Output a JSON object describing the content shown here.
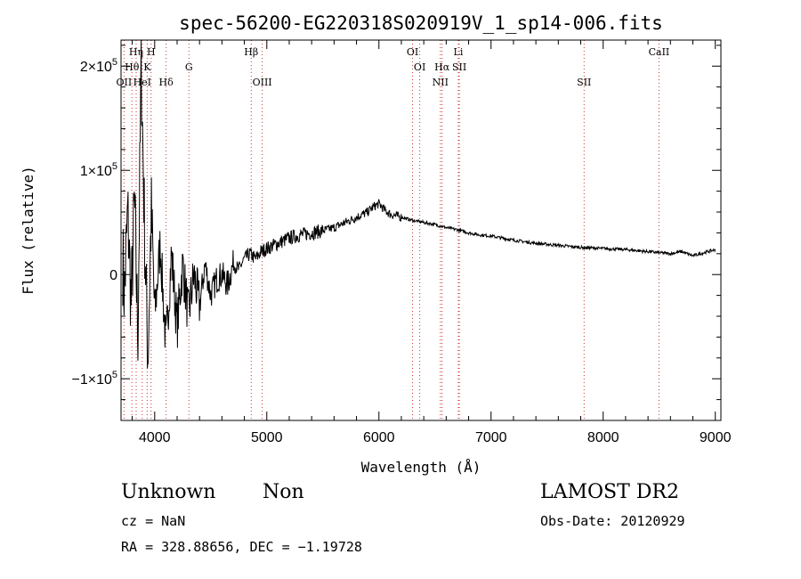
{
  "chart_data": {
    "type": "line",
    "title": "spec-56200-EG220318S020919V_1_sp14-006.fits",
    "xlabel": "Wavelength (Å)",
    "ylabel": "Flux (relative)",
    "xlim": [
      3700,
      9050
    ],
    "ylim": [
      -140000,
      225000
    ],
    "grid": false,
    "x_ticks": [
      {
        "value": 4000,
        "label": "4000"
      },
      {
        "value": 5000,
        "label": "5000"
      },
      {
        "value": 6000,
        "label": "6000"
      },
      {
        "value": 7000,
        "label": "7000"
      },
      {
        "value": 8000,
        "label": "8000"
      },
      {
        "value": 9000,
        "label": "9000"
      }
    ],
    "y_ticks": [
      {
        "value": 200000,
        "mant": "2×10",
        "exp": "5"
      },
      {
        "value": 100000,
        "mant": "1×10",
        "exp": "5"
      },
      {
        "value": 0,
        "mant": "0",
        "exp": ""
      },
      {
        "value": -100000,
        "mant": "−1×10",
        "exp": "5"
      }
    ],
    "series": [
      {
        "x": [
          3700,
          3730,
          3760,
          3790,
          3820,
          3850,
          3880,
          3910,
          3940,
          3970,
          4000,
          4050,
          4100,
          4150,
          4200,
          4250,
          4300,
          4350,
          4400,
          4450,
          4500,
          4550,
          4600,
          4650,
          4700,
          4750,
          4800,
          4850,
          4900,
          4950,
          5000,
          5100,
          5200,
          5300,
          5400,
          5500,
          5600,
          5700,
          5800,
          5900,
          5950,
          6000,
          6050,
          6100,
          6200,
          6300,
          6400,
          6500,
          6600,
          6700,
          6800,
          6900,
          7000,
          7200,
          7400,
          7600,
          7800,
          8000,
          8200,
          8400,
          8600,
          8700,
          8800,
          8900,
          9000
        ],
        "y": [
          50000,
          -20000,
          60000,
          -30000,
          70000,
          -60000,
          200000,
          40000,
          -80000,
          60000,
          -40000,
          30000,
          -70000,
          20000,
          -50000,
          10000,
          -40000,
          0,
          -30000,
          10000,
          -20000,
          -5000,
          0,
          -10000,
          10000,
          5000,
          15000,
          20000,
          15000,
          22000,
          25000,
          30000,
          35000,
          38000,
          40000,
          42000,
          45000,
          50000,
          55000,
          60000,
          65000,
          68000,
          62000,
          58000,
          55000,
          52000,
          50000,
          48000,
          45000,
          43000,
          40000,
          38000,
          37000,
          33000,
          30000,
          28000,
          26000,
          25000,
          24000,
          22000,
          20000,
          22000,
          18000,
          21000,
          24000
        ]
      }
    ],
    "lines": [
      {
        "label": "Hη",
        "x": 3835,
        "row": 1
      },
      {
        "label": "Hθ",
        "x": 3797,
        "row": 2
      },
      {
        "label": "OII",
        "x": 3727,
        "row": 3
      },
      {
        "label": "H",
        "x": 3968,
        "row": 1
      },
      {
        "label": "K",
        "x": 3933,
        "row": 2
      },
      {
        "label": "HeI",
        "x": 3889,
        "row": 3
      },
      {
        "label": "Hδ",
        "x": 4102,
        "row": 3
      },
      {
        "label": "G",
        "x": 4305,
        "row": 2
      },
      {
        "label": "Hβ",
        "x": 4861,
        "row": 1
      },
      {
        "label": "OIII",
        "x": 4959,
        "row": 3
      },
      {
        "label": "OI",
        "x": 6300,
        "row": 1
      },
      {
        "label": "OI",
        "x": 6364,
        "row": 2
      },
      {
        "label": "NII",
        "x": 6548,
        "row": 3
      },
      {
        "label": "Hα",
        "x": 6563,
        "row": 2
      },
      {
        "label": "Li",
        "x": 6708,
        "row": 1
      },
      {
        "label": "SII",
        "x": 6717,
        "row": 2
      },
      {
        "label": "SII",
        "x": 7830,
        "row": 3
      },
      {
        "label": "CaII",
        "x": 8498,
        "row": 1
      }
    ]
  },
  "info": {
    "class": "Unknown",
    "subclass": "Non",
    "survey": "LAMOST DR2",
    "cz": "cz = NaN",
    "obs_date": "Obs-Date: 20120929",
    "coords": "RA = 328.88656, DEC =  −1.19728"
  }
}
